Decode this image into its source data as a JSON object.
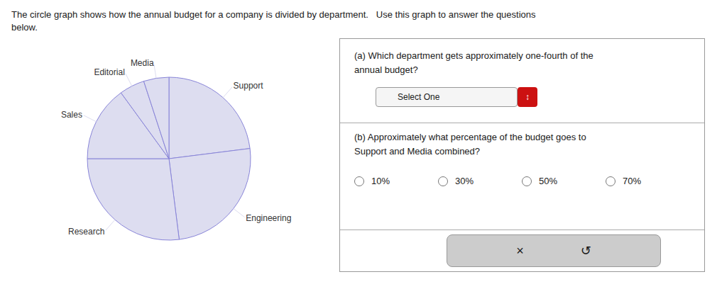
{
  "chart_data": {
    "type": "pie",
    "title": "The circle graph shows how the annual budget for a company is divided by department.   Use this graph to answer the questions",
    "subtitle": "below.",
    "categories": [
      "Support",
      "Engineering",
      "Research",
      "Sales",
      "Editorial",
      "Media"
    ],
    "values": [
      23,
      25,
      27,
      15,
      5,
      5
    ],
    "color": "#ddddf0",
    "annotations": [
      "(a) Which department gets approximately one-fourth of the\nannual budget?",
      "Select One",
      "↕",
      "(b) Approximately what percentage of the budget goes to\nSupport and Media combined?",
      "10%",
      "30%",
      "50%",
      "70%",
      "×",
      "↺"
    ]
  }
}
